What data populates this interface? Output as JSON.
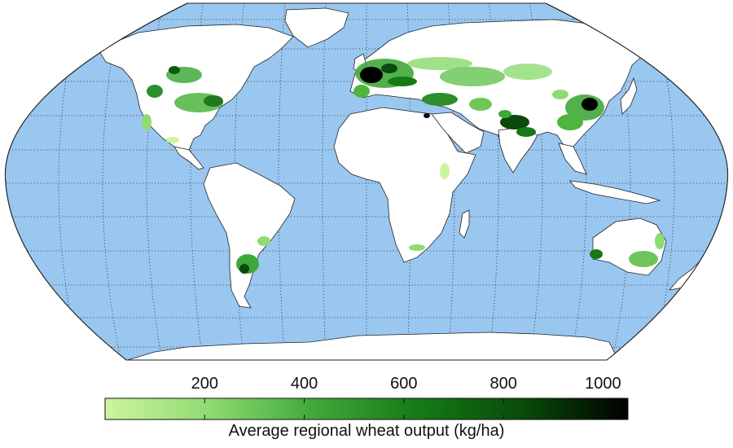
{
  "map": {
    "projection": "robinson",
    "ocean_color": "#99c7f0",
    "land_color": "#ffffff",
    "graticule": "dotted"
  },
  "colorbar": {
    "title": "Average regional wheat output (kg/ha)",
    "min": 0,
    "max": 1050,
    "ticks": [
      {
        "value": 200,
        "label": "200"
      },
      {
        "value": 400,
        "label": "400"
      },
      {
        "value": 600,
        "label": "600"
      },
      {
        "value": 800,
        "label": "800"
      },
      {
        "value": 1000,
        "label": "1000"
      }
    ],
    "gradient": [
      "#ccf5a0",
      "#8fdb72",
      "#3fa83a",
      "#157a15",
      "#0a4a0a",
      "#000000"
    ]
  }
}
